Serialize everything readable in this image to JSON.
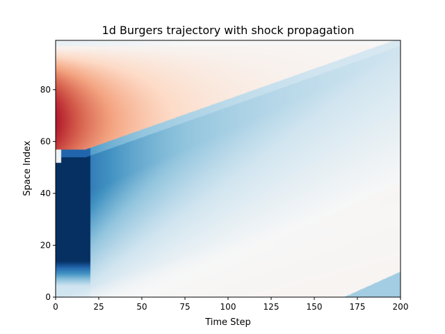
{
  "chart_data": {
    "type": "heatmap",
    "title": "1d Burgers trajectory with shock propagation",
    "xlabel": "Time Step",
    "ylabel": "Space Index",
    "xlim": [
      0,
      200
    ],
    "ylim": [
      0,
      99
    ],
    "xticks": [
      0,
      25,
      50,
      75,
      100,
      125,
      150,
      175,
      200
    ],
    "yticks": [
      0,
      20,
      40,
      60,
      80
    ],
    "colormap": "RdBu",
    "grid": false,
    "legend": "none",
    "colors": {
      "red_extreme": "#b2182b",
      "blue_extreme": "#053061",
      "mid": "#f7f7f7"
    },
    "features": {
      "shock_line": {
        "from": [
          17,
          57
        ],
        "to": [
          200,
          100
        ]
      },
      "positive_region": {
        "t_range": [
          0,
          125
        ],
        "x_range": [
          57,
          97
        ],
        "peak": [
          0,
          68
        ]
      },
      "negative_region_peak": {
        "t": 0,
        "x_range": [
          12,
          55
        ]
      },
      "late_positive_patch": {
        "t_range": [
          170,
          200
        ],
        "x_range": [
          0,
          10
        ]
      }
    }
  }
}
